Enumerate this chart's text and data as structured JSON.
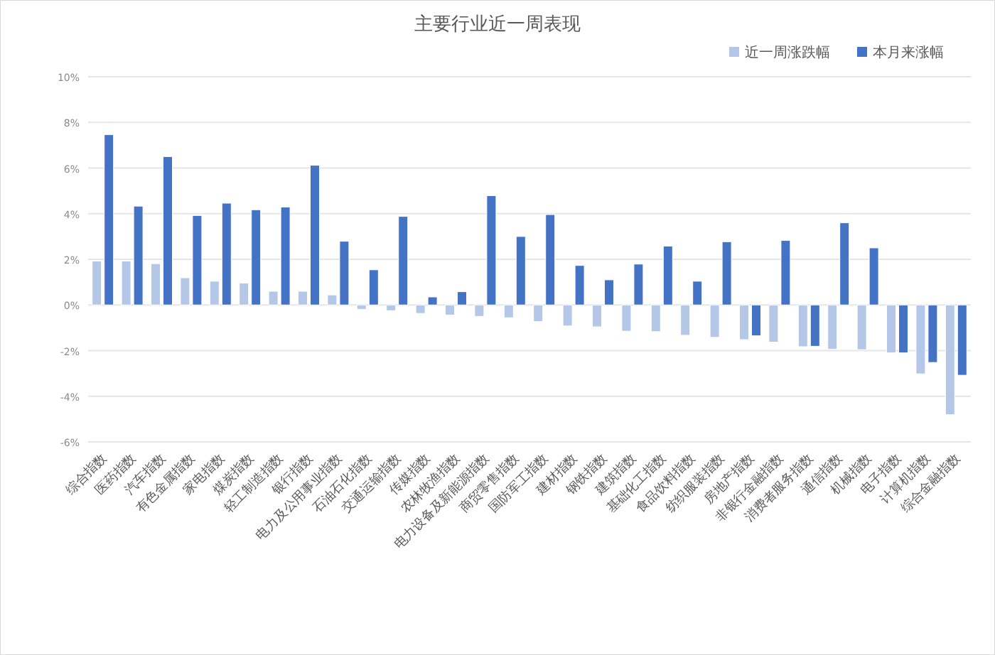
{
  "chart_data": {
    "type": "bar",
    "title": "主要行业近一周表现",
    "categories": [
      "综合指数",
      "医药指数",
      "汽车指数",
      "有色金属指数",
      "家电指数",
      "煤炭指数",
      "轻工制造指数",
      "银行指数",
      "电力及公用事业指数",
      "石油石化指数",
      "交通运输指数",
      "传媒指数",
      "农林牧渔指数",
      "电力设备及新能源指数",
      "商贸零售指数",
      "国防军工指数",
      "建材指数",
      "钢铁指数",
      "建筑指数",
      "基础化工指数",
      "食品饮料指数",
      "纺织服装指数",
      "房地产指数",
      "非银行金融指数",
      "消费者服务指数",
      "通信指数",
      "机械指数",
      "电子指数",
      "计算机指数",
      "综合金融指数"
    ],
    "series": [
      {
        "name": "近一周涨跌幅",
        "color": "#b4c7e7",
        "values": [
          1.92,
          1.92,
          1.81,
          1.19,
          1.04,
          0.96,
          0.6,
          0.6,
          0.44,
          -0.19,
          -0.25,
          -0.37,
          -0.44,
          -0.5,
          -0.56,
          -0.73,
          -0.92,
          -0.96,
          -1.15,
          -1.17,
          -1.33,
          -1.42,
          -1.52,
          -1.63,
          -1.83,
          -1.94,
          -1.96,
          -2.1,
          -3.02,
          -4.81
        ]
      },
      {
        "name": "本月来涨幅",
        "color": "#4472c4",
        "values": [
          7.46,
          4.33,
          6.5,
          3.92,
          4.46,
          4.17,
          4.29,
          6.12,
          2.79,
          1.54,
          3.88,
          0.35,
          0.58,
          4.79,
          3.0,
          3.96,
          1.73,
          1.1,
          1.79,
          2.58,
          1.04,
          2.77,
          -1.35,
          2.83,
          -1.81,
          3.6,
          2.5,
          -2.1,
          -2.52,
          -3.08
        ]
      }
    ],
    "ylim": [
      -6,
      10
    ],
    "yticks": [
      {
        "value": -6,
        "label": "-6%"
      },
      {
        "value": -4,
        "label": "-4%"
      },
      {
        "value": -2,
        "label": "-2%"
      },
      {
        "value": 0,
        "label": "0%"
      },
      {
        "value": 2,
        "label": "2%"
      },
      {
        "value": 4,
        "label": "4%"
      },
      {
        "value": 6,
        "label": "6%"
      },
      {
        "value": 8,
        "label": "8%"
      },
      {
        "value": 10,
        "label": "10%"
      }
    ],
    "grid": "y",
    "legend": "top right"
  }
}
